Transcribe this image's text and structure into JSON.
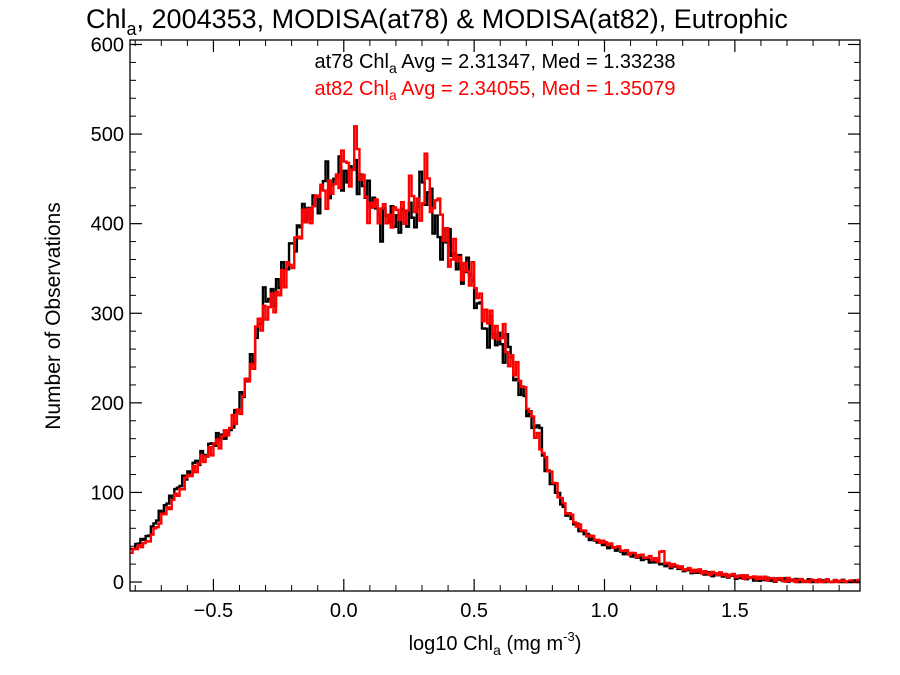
{
  "chart_data": {
    "type": "line",
    "title": {
      "prefix": "Chl",
      "sub": "a",
      "suffix": ", 2004353, MODISA(at78) & MODISA(at82), Eutrophic"
    },
    "xlabel": {
      "prefix": "log10 Chl",
      "sub": "a",
      "mid": " (mg m",
      "sup": "-3",
      "suffix": ")"
    },
    "ylabel": "Number of Observations",
    "xlim": [
      -0.82,
      1.98
    ],
    "ylim": [
      -10,
      605
    ],
    "x_ticks": [
      -0.5,
      0.0,
      0.5,
      1.0,
      1.5
    ],
    "x_tick_labels": [
      "−0.5",
      "0.0",
      "0.5",
      "1.0",
      "1.5"
    ],
    "y_ticks": [
      0,
      100,
      200,
      300,
      400,
      500,
      600
    ],
    "y_tick_labels": [
      "0",
      "100",
      "200",
      "300",
      "400",
      "500",
      "600"
    ],
    "grid": false,
    "bin_width": 0.01,
    "annotations": [
      {
        "prefix": "at78 Chl",
        "sub": "a",
        "suffix": " Avg = 2.31347, Med = 1.33238",
        "color": "#000000"
      },
      {
        "prefix": "at82 Chl",
        "sub": "a",
        "suffix": " Avg = 2.34055, Med = 1.35079",
        "color": "#ff0000"
      }
    ],
    "series": [
      {
        "color": "#000000",
        "shape_points": [
          [
            -0.82,
            35
          ],
          [
            -0.75,
            52
          ],
          [
            -0.7,
            78
          ],
          [
            -0.6,
            120
          ],
          [
            -0.5,
            155
          ],
          [
            -0.45,
            168
          ],
          [
            -0.4,
            195
          ],
          [
            -0.35,
            250
          ],
          [
            -0.3,
            310
          ],
          [
            -0.25,
            330
          ],
          [
            -0.2,
            370
          ],
          [
            -0.15,
            410
          ],
          [
            -0.1,
            425
          ],
          [
            -0.05,
            440
          ],
          [
            0.0,
            450
          ],
          [
            0.05,
            450
          ],
          [
            0.1,
            430
          ],
          [
            0.15,
            410
          ],
          [
            0.2,
            405
          ],
          [
            0.25,
            408
          ],
          [
            0.3,
            410
          ],
          [
            0.35,
            400
          ],
          [
            0.4,
            380
          ],
          [
            0.45,
            350
          ],
          [
            0.5,
            320
          ],
          [
            0.55,
            290
          ],
          [
            0.6,
            265
          ],
          [
            0.65,
            235
          ],
          [
            0.7,
            200
          ],
          [
            0.75,
            150
          ],
          [
            0.8,
            110
          ],
          [
            0.85,
            80
          ],
          [
            0.9,
            60
          ],
          [
            0.95,
            48
          ],
          [
            1.0,
            42
          ],
          [
            1.1,
            30
          ],
          [
            1.2,
            22
          ],
          [
            1.3,
            14
          ],
          [
            1.4,
            9
          ],
          [
            1.5,
            6
          ],
          [
            1.6,
            3
          ],
          [
            1.7,
            2
          ],
          [
            1.8,
            1
          ],
          [
            1.98,
            0
          ]
        ],
        "noise": [
          6,
          -12,
          9,
          -4,
          14,
          -8,
          3,
          -15,
          11,
          2,
          -7,
          16,
          -10,
          5,
          -3,
          12,
          -14,
          8,
          0,
          -6,
          13,
          -9,
          4,
          -16,
          10,
          7,
          -11,
          15,
          -2,
          -13,
          9,
          3,
          -8,
          14,
          -5,
          1,
          -12,
          11,
          6,
          -15,
          8,
          -3,
          17,
          -7,
          2,
          -10,
          12,
          -14,
          5,
          9,
          -4,
          13,
          -11,
          0,
          7,
          -16,
          10,
          -6,
          15,
          -1,
          -9,
          12,
          4,
          -13,
          8,
          -2,
          16,
          -8,
          3,
          -12,
          11,
          6,
          -15,
          9,
          -5,
          14,
          -10,
          2,
          7,
          -14
        ],
        "spikes": [
          [
            -0.44,
            -10
          ],
          [
            -0.3,
            12
          ],
          [
            -0.07,
            20
          ],
          [
            -0.02,
            22
          ],
          [
            0.04,
            18
          ],
          [
            0.14,
            -18
          ],
          [
            0.3,
            45
          ],
          [
            0.33,
            35
          ],
          [
            0.37,
            -15
          ],
          [
            0.48,
            18
          ],
          [
            0.55,
            -20
          ],
          [
            0.63,
            20
          ],
          [
            0.75,
            25
          ]
        ]
      },
      {
        "color": "#ff0000",
        "shape_points": [
          [
            -0.82,
            33
          ],
          [
            -0.75,
            45
          ],
          [
            -0.7,
            70
          ],
          [
            -0.6,
            115
          ],
          [
            -0.5,
            150
          ],
          [
            -0.45,
            165
          ],
          [
            -0.4,
            190
          ],
          [
            -0.35,
            245
          ],
          [
            -0.3,
            300
          ],
          [
            -0.25,
            320
          ],
          [
            -0.2,
            360
          ],
          [
            -0.15,
            405
          ],
          [
            -0.1,
            420
          ],
          [
            -0.05,
            438
          ],
          [
            0.0,
            452
          ],
          [
            0.05,
            455
          ],
          [
            0.1,
            428
          ],
          [
            0.15,
            410
          ],
          [
            0.2,
            408
          ],
          [
            0.25,
            412
          ],
          [
            0.3,
            418
          ],
          [
            0.35,
            405
          ],
          [
            0.4,
            385
          ],
          [
            0.45,
            355
          ],
          [
            0.5,
            325
          ],
          [
            0.55,
            295
          ],
          [
            0.6,
            270
          ],
          [
            0.65,
            238
          ],
          [
            0.7,
            205
          ],
          [
            0.75,
            155
          ],
          [
            0.8,
            115
          ],
          [
            0.85,
            82
          ],
          [
            0.9,
            62
          ],
          [
            0.95,
            50
          ],
          [
            1.0,
            44
          ],
          [
            1.1,
            32
          ],
          [
            1.2,
            25
          ],
          [
            1.3,
            15
          ],
          [
            1.4,
            10
          ],
          [
            1.5,
            7
          ],
          [
            1.6,
            4
          ],
          [
            1.7,
            2
          ],
          [
            1.8,
            1
          ],
          [
            1.98,
            0
          ]
        ],
        "noise": [
          -8,
          11,
          -3,
          15,
          -12,
          6,
          9,
          -14,
          2,
          13,
          -6,
          -10,
          17,
          -4,
          8,
          -15,
          5,
          12,
          -9,
          1,
          -13,
          10,
          7,
          -5,
          14,
          -11,
          3,
          16,
          -8,
          -2,
          12,
          -14,
          6,
          9,
          -16,
          4,
          11,
          -7,
          -1,
          15,
          -10,
          8,
          -12,
          2,
          13,
          -6,
          5,
          -15,
          10,
          7,
          -3,
          14,
          -9,
          1,
          12,
          -13,
          6,
          -4,
          16,
          -11,
          9,
          -2,
          -14,
          11,
          3,
          -8,
          15,
          -5,
          7,
          -12,
          4,
          13,
          -10,
          0,
          8,
          -16,
          12,
          -6,
          2,
          10
        ],
        "spikes": [
          [
            -0.33,
            15
          ],
          [
            -0.09,
            18
          ],
          [
            0.0,
            20
          ],
          [
            0.05,
            45
          ],
          [
            0.1,
            -20
          ],
          [
            0.26,
            25
          ],
          [
            0.32,
            55
          ],
          [
            0.36,
            30
          ],
          [
            0.41,
            -18
          ],
          [
            0.5,
            15
          ],
          [
            0.61,
            18
          ],
          [
            0.67,
            12
          ],
          [
            1.22,
            10
          ]
        ]
      }
    ]
  }
}
